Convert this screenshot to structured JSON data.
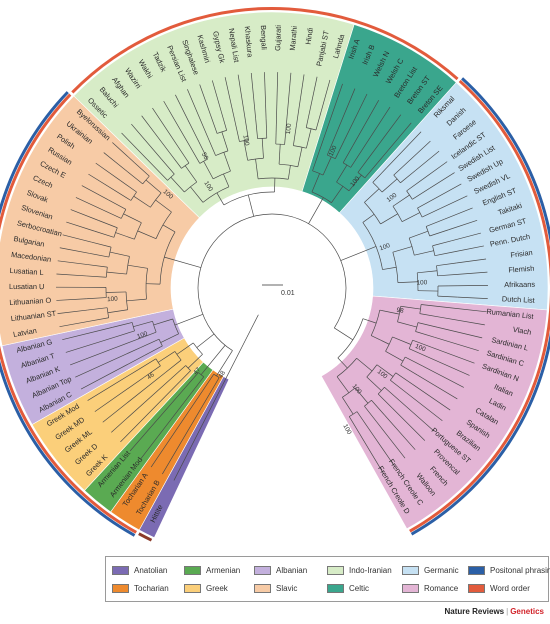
{
  "groups": {
    "Anatolian": "#7b6bb3",
    "Tocharian": "#ee8a2e",
    "Armenian": "#5aaa52",
    "Greek": "#fbcf7a",
    "Albanian": "#c3b0dd",
    "Slavic": "#f7cba6",
    "Indo-Iranian": "#d7ecc7",
    "Celtic": "#3aa68d",
    "Germanic": "#c6e1f3",
    "Romance": "#e3b5d5"
  },
  "leaves": [
    {
      "name": "Hittite",
      "group": "Anatolian",
      "bars": [
        "#8c3b2a"
      ]
    },
    {
      "name": "Tocharian B",
      "group": "Tocharian",
      "bars": [
        "#2b5fa6",
        "#e25b3c"
      ]
    },
    {
      "name": "Tocharian A",
      "group": "Tocharian",
      "bars": [
        "#2b5fa6",
        "#e25b3c"
      ]
    },
    {
      "name": "Armenian Mod",
      "group": "Armenian",
      "bars": [
        "#2b5fa6",
        "#e25b3c"
      ]
    },
    {
      "name": "Armenian List",
      "group": "Armenian",
      "bars": [
        "#2b5fa6",
        "#e25b3c"
      ]
    },
    {
      "name": "Greek K",
      "group": "Greek",
      "bars": [
        "#2b5fa6",
        "#e25b3c"
      ]
    },
    {
      "name": "Greek D",
      "group": "Greek",
      "bars": [
        "#2b5fa6",
        "#e25b3c"
      ]
    },
    {
      "name": "Greek ML",
      "group": "Greek",
      "bars": [
        "#2b5fa6",
        "#e25b3c"
      ]
    },
    {
      "name": "Greek MD",
      "group": "Greek",
      "bars": [
        "#2b5fa6",
        "#e25b3c"
      ]
    },
    {
      "name": "Greek Mod",
      "group": "Greek",
      "bars": [
        "#2b5fa6",
        "#e25b3c"
      ]
    },
    {
      "name": "Albanian C",
      "group": "Albanian",
      "bars": [
        "#2b5fa6",
        "#e25b3c"
      ]
    },
    {
      "name": "Albanian Top",
      "group": "Albanian",
      "bars": [
        "#2b5fa6",
        "#e25b3c"
      ]
    },
    {
      "name": "Albanian K",
      "group": "Albanian",
      "bars": [
        "#2b5fa6",
        "#e25b3c"
      ]
    },
    {
      "name": "Albanian T",
      "group": "Albanian",
      "bars": [
        "#2b5fa6",
        "#e25b3c"
      ]
    },
    {
      "name": "Albanian G",
      "group": "Albanian",
      "bars": [
        "#2b5fa6",
        "#e25b3c"
      ]
    },
    {
      "name": "Latvian",
      "group": "Slavic",
      "bars": [
        "#2b5fa6",
        "#e25b3c"
      ]
    },
    {
      "name": "Lithuanian ST",
      "group": "Slavic",
      "bars": [
        "#2b5fa6",
        "#e25b3c"
      ]
    },
    {
      "name": "Lithuanian O",
      "group": "Slavic",
      "bars": [
        "#2b5fa6",
        "#e25b3c"
      ]
    },
    {
      "name": "Lusatian U",
      "group": "Slavic",
      "bars": [
        "#2b5fa6",
        "#e25b3c"
      ]
    },
    {
      "name": "Lusatian L",
      "group": "Slavic",
      "bars": [
        "#2b5fa6",
        "#e25b3c"
      ]
    },
    {
      "name": "Macedonian",
      "group": "Slavic",
      "bars": [
        "#2b5fa6",
        "#e25b3c"
      ]
    },
    {
      "name": "Bulgarian",
      "group": "Slavic",
      "bars": [
        "#2b5fa6",
        "#e25b3c"
      ]
    },
    {
      "name": "Serbocroatian",
      "group": "Slavic",
      "bars": [
        "#2b5fa6",
        "#e25b3c"
      ]
    },
    {
      "name": "Slovenian",
      "group": "Slavic",
      "bars": [
        "#2b5fa6",
        "#e25b3c"
      ]
    },
    {
      "name": "Slovak",
      "group": "Slavic",
      "bars": [
        "#2b5fa6",
        "#e25b3c"
      ]
    },
    {
      "name": "Czech",
      "group": "Slavic",
      "bars": [
        "#2b5fa6",
        "#e25b3c"
      ]
    },
    {
      "name": "Czech E",
      "group": "Slavic",
      "bars": [
        "#2b5fa6",
        "#e25b3c"
      ]
    },
    {
      "name": "Russian",
      "group": "Slavic",
      "bars": [
        "#2b5fa6",
        "#e25b3c"
      ]
    },
    {
      "name": "Polish",
      "group": "Slavic",
      "bars": [
        "#2b5fa6",
        "#e25b3c"
      ]
    },
    {
      "name": "Ukrainian",
      "group": "Slavic",
      "bars": [
        "#2b5fa6",
        "#e25b3c"
      ]
    },
    {
      "name": "Byelorussian",
      "group": "Slavic",
      "bars": [
        "#2b5fa6",
        "#e25b3c"
      ]
    },
    {
      "name": "Ossetic",
      "group": "Indo-Iranian",
      "bars": [
        "#e25b3c"
      ]
    },
    {
      "name": "Baluchi",
      "group": "Indo-Iranian",
      "bars": [
        "#e25b3c"
      ]
    },
    {
      "name": "Afghan",
      "group": "Indo-Iranian",
      "bars": [
        "#e25b3c"
      ]
    },
    {
      "name": "Wazirri",
      "group": "Indo-Iranian",
      "bars": [
        "#e25b3c"
      ]
    },
    {
      "name": "Wakhi",
      "group": "Indo-Iranian",
      "bars": [
        "#e25b3c"
      ]
    },
    {
      "name": "Tadzik",
      "group": "Indo-Iranian",
      "bars": [
        "#e25b3c"
      ]
    },
    {
      "name": "Persian List",
      "group": "Indo-Iranian",
      "bars": [
        "#e25b3c"
      ]
    },
    {
      "name": "Singhalese",
      "group": "Indo-Iranian",
      "bars": [
        "#e25b3c"
      ]
    },
    {
      "name": "Kashmiri",
      "group": "Indo-Iranian",
      "bars": [
        "#e25b3c"
      ]
    },
    {
      "name": "Gypsy Gk",
      "group": "Indo-Iranian",
      "bars": [
        "#e25b3c"
      ]
    },
    {
      "name": "Nepali List",
      "group": "Indo-Iranian",
      "bars": [
        "#e25b3c"
      ]
    },
    {
      "name": "Khaskura",
      "group": "Indo-Iranian",
      "bars": [
        "#e25b3c"
      ]
    },
    {
      "name": "Bengali",
      "group": "Indo-Iranian",
      "bars": [
        "#e25b3c"
      ]
    },
    {
      "name": "Gujarati",
      "group": "Indo-Iranian",
      "bars": [
        "#e25b3c"
      ]
    },
    {
      "name": "Marathi",
      "group": "Indo-Iranian",
      "bars": [
        "#e25b3c"
      ]
    },
    {
      "name": "Hindi",
      "group": "Indo-Iranian",
      "bars": [
        "#e25b3c"
      ]
    },
    {
      "name": "Panjabi ST",
      "group": "Indo-Iranian",
      "bars": [
        "#e25b3c"
      ]
    },
    {
      "name": "Lahnda",
      "group": "Indo-Iranian",
      "bars": [
        "#e25b3c"
      ]
    },
    {
      "name": "Irish A",
      "group": "Celtic",
      "bars": [
        "#e25b3c"
      ]
    },
    {
      "name": "Irish B",
      "group": "Celtic",
      "bars": [
        "#e25b3c"
      ]
    },
    {
      "name": "Welsh N",
      "group": "Celtic",
      "bars": [
        "#e25b3c"
      ]
    },
    {
      "name": "Welsh C",
      "group": "Celtic",
      "bars": [
        "#e25b3c"
      ]
    },
    {
      "name": "Breton List",
      "group": "Celtic",
      "bars": [
        "#e25b3c"
      ]
    },
    {
      "name": "Breton ST",
      "group": "Celtic",
      "bars": [
        "#e25b3c"
      ]
    },
    {
      "name": "Breton SE",
      "group": "Celtic",
      "bars": [
        "#e25b3c"
      ]
    },
    {
      "name": "Riksmal",
      "group": "Germanic",
      "bars": [
        "#2b5fa6",
        "#e25b3c"
      ]
    },
    {
      "name": "Danish",
      "group": "Germanic",
      "bars": [
        "#2b5fa6",
        "#e25b3c"
      ]
    },
    {
      "name": "Faroese",
      "group": "Germanic",
      "bars": [
        "#2b5fa6",
        "#e25b3c"
      ]
    },
    {
      "name": "Icelandic ST",
      "group": "Germanic",
      "bars": [
        "#2b5fa6",
        "#e25b3c"
      ]
    },
    {
      "name": "Swedish List",
      "group": "Germanic",
      "bars": [
        "#2b5fa6",
        "#e25b3c"
      ]
    },
    {
      "name": "Swedish Up",
      "group": "Germanic",
      "bars": [
        "#2b5fa6",
        "#e25b3c"
      ]
    },
    {
      "name": "Swedish VL",
      "group": "Germanic",
      "bars": [
        "#2b5fa6",
        "#e25b3c"
      ]
    },
    {
      "name": "English ST",
      "group": "Germanic",
      "bars": [
        "#2b5fa6",
        "#e25b3c"
      ]
    },
    {
      "name": "Takitaki",
      "group": "Germanic",
      "bars": [
        "#2b5fa6",
        "#e25b3c"
      ]
    },
    {
      "name": "German ST",
      "group": "Germanic",
      "bars": [
        "#2b5fa6",
        "#e25b3c"
      ]
    },
    {
      "name": "Penn. Dutch",
      "group": "Germanic",
      "bars": [
        "#2b5fa6",
        "#e25b3c"
      ]
    },
    {
      "name": "Frisian",
      "group": "Germanic",
      "bars": [
        "#2b5fa6",
        "#e25b3c"
      ]
    },
    {
      "name": "Flemish",
      "group": "Germanic",
      "bars": [
        "#2b5fa6",
        "#e25b3c"
      ]
    },
    {
      "name": "Afrikaans",
      "group": "Germanic",
      "bars": [
        "#2b5fa6",
        "#e25b3c"
      ]
    },
    {
      "name": "Dutch List",
      "group": "Germanic",
      "bars": [
        "#2b5fa6",
        "#e25b3c"
      ]
    },
    {
      "name": "Rumanian List",
      "group": "Romance",
      "bars": [
        "#2b5fa6",
        "#e25b3c"
      ]
    },
    {
      "name": "Vlach",
      "group": "Romance",
      "bars": [
        "#2b5fa6",
        "#e25b3c"
      ]
    },
    {
      "name": "Sardinian L",
      "group": "Romance",
      "bars": [
        "#2b5fa6",
        "#e25b3c"
      ]
    },
    {
      "name": "Sardinian C",
      "group": "Romance",
      "bars": [
        "#2b5fa6",
        "#e25b3c"
      ]
    },
    {
      "name": "Sardinian N",
      "group": "Romance",
      "bars": [
        "#2b5fa6",
        "#e25b3c"
      ]
    },
    {
      "name": "Italian",
      "group": "Romance",
      "bars": [
        "#2b5fa6",
        "#e25b3c"
      ]
    },
    {
      "name": "Ladin",
      "group": "Romance",
      "bars": [
        "#2b5fa6",
        "#e25b3c"
      ]
    },
    {
      "name": "Catalan",
      "group": "Romance",
      "bars": [
        "#2b5fa6",
        "#e25b3c"
      ]
    },
    {
      "name": "Spanish",
      "group": "Romance",
      "bars": [
        "#2b5fa6",
        "#e25b3c"
      ]
    },
    {
      "name": "Brazilian",
      "group": "Romance",
      "bars": [
        "#2b5fa6",
        "#e25b3c"
      ]
    },
    {
      "name": "Portuguese ST",
      "group": "Romance",
      "bars": [
        "#2b5fa6",
        "#e25b3c"
      ]
    },
    {
      "name": "Provencal",
      "group": "Romance",
      "bars": [
        "#2b5fa6",
        "#e25b3c"
      ]
    },
    {
      "name": "French",
      "group": "Romance",
      "bars": [
        "#2b5fa6",
        "#e25b3c"
      ]
    },
    {
      "name": "Walloon",
      "group": "Romance",
      "bars": [
        "#2b5fa6",
        "#e25b3c"
      ]
    },
    {
      "name": "French Creole C",
      "group": "Romance",
      "bars": [
        "#2b5fa6",
        "#e25b3c"
      ]
    },
    {
      "name": "French Creole D",
      "group": "Romance",
      "bars": [
        "#2b5fa6",
        "#e25b3c"
      ]
    }
  ],
  "bootstrap_labels": [
    "100",
    "100",
    "56",
    "100",
    "100",
    "100",
    "100",
    "100",
    "100",
    "100",
    "98",
    "100",
    "100",
    "100",
    "100",
    "48",
    "47",
    "46",
    "100",
    "100"
  ],
  "scale_label": "0.01",
  "legend": [
    {
      "label": "Anatolian",
      "color": "#7b6bb3"
    },
    {
      "label": "Armenian",
      "color": "#5aaa52"
    },
    {
      "label": "Albanian",
      "color": "#c3b0dd"
    },
    {
      "label": "Indo-Iranian",
      "color": "#d7ecc7"
    },
    {
      "label": "Germanic",
      "color": "#c6e1f3"
    },
    {
      "label": "Positonal phrasing",
      "color": "#2b5fa6"
    },
    {
      "label": "Tocharian",
      "color": "#ee8a2e"
    },
    {
      "label": "Greek",
      "color": "#fbcf7a"
    },
    {
      "label": "Slavic",
      "color": "#f7cba6"
    },
    {
      "label": "Celtic",
      "color": "#3aa68d"
    },
    {
      "label": "Romance",
      "color": "#e3b5d5"
    },
    {
      "label": "Word order",
      "color": "#e25b3c"
    }
  ],
  "credit": {
    "publisher": "Nature Reviews",
    "journal": "Genetics"
  }
}
